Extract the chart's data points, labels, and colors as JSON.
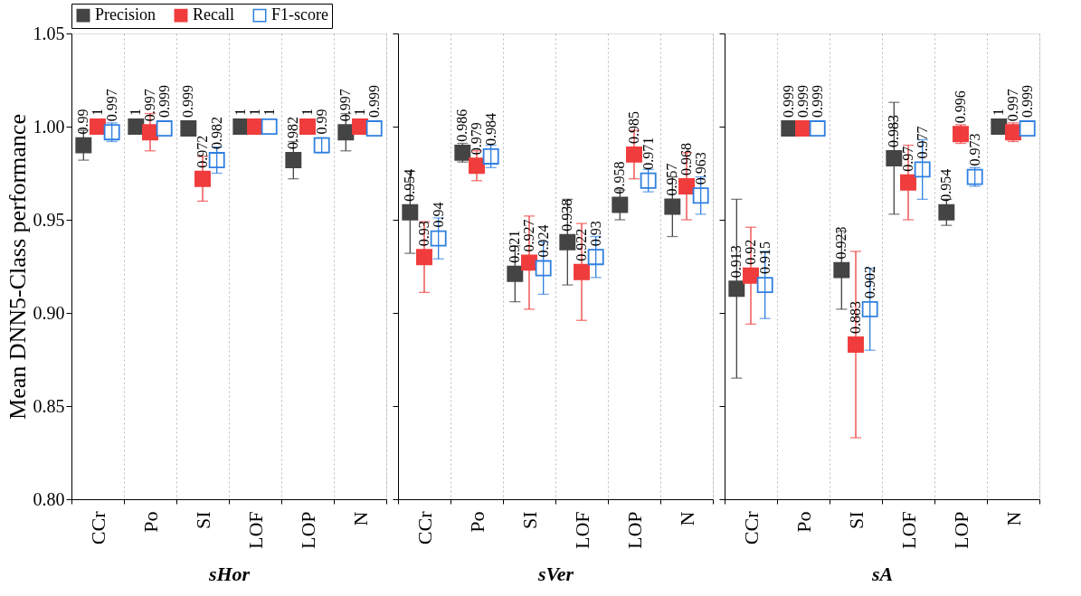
{
  "chart_data": [
    {
      "type": "scatter",
      "xlabel": "sHor",
      "ylabel": "Mean DNN5-Class performance",
      "categories": [
        "CCr",
        "Po",
        "SI",
        "LOF",
        "LOP",
        "N"
      ],
      "ylim": [
        0.8,
        1.05
      ],
      "yticks": [
        {
          "value": 0.8,
          "label": "0.80"
        },
        0.85,
        {
          "value": 0.9,
          "label": "0.90"
        },
        0.95,
        {
          "value": 1.0,
          "label": "1.00"
        },
        1.05
      ],
      "marker": "square",
      "data_labels": true,
      "legend": "top left",
      "grid": "x",
      "series": [
        {
          "name": "Precision",
          "color": "#444444",
          "values": [
            0.99,
            1,
            0.999,
            1,
            0.982,
            0.997
          ],
          "errors": [
            0.008,
            null,
            null,
            null,
            0.01,
            0.01
          ]
        },
        {
          "name": "Recall",
          "color": "#f03c3c",
          "values": [
            1,
            0.997,
            0.972,
            1,
            1,
            1
          ],
          "errors": [
            null,
            0.01,
            0.012,
            null,
            null,
            null
          ]
        },
        {
          "name": "F1-score",
          "color": "#2f7fe0",
          "values": [
            0.997,
            0.999,
            0.982,
            1,
            0.99,
            0.999
          ],
          "errors": [
            0.005,
            null,
            0.007,
            null,
            0.004,
            null
          ]
        }
      ]
    },
    {
      "type": "scatter",
      "xlabel": "sVer",
      "categories": [
        "CCr",
        "Po",
        "SI",
        "LOF",
        "LOP",
        "N"
      ],
      "ylim": [
        0.8,
        1.05
      ],
      "yticks": [
        0.8,
        0.85,
        0.9,
        0.95,
        1.0,
        1.05
      ],
      "marker": "square",
      "data_labels": true,
      "tick_labels": "x",
      "grid": "x",
      "series": [
        {
          "name": "Precision",
          "color": "#444444",
          "values": [
            0.954,
            0.986,
            0.921,
            0.938,
            0.958,
            0.957
          ],
          "errors": [
            0.022,
            0.005,
            0.015,
            0.023,
            0.008,
            0.016
          ]
        },
        {
          "name": "Recall",
          "color": "#f03c3c",
          "values": [
            0.93,
            0.979,
            0.927,
            0.922,
            0.985,
            0.968
          ],
          "errors": [
            0.019,
            0.008,
            0.025,
            0.026,
            0.013,
            0.018
          ]
        },
        {
          "name": "F1-score",
          "color": "#2f7fe0",
          "values": [
            0.94,
            0.984,
            0.924,
            0.93,
            0.971,
            0.963
          ],
          "errors": [
            0.011,
            0.006,
            0.014,
            0.011,
            0.006,
            0.01
          ]
        }
      ]
    },
    {
      "type": "scatter",
      "xlabel": "sA",
      "categories": [
        "CCr",
        "Po",
        "SI",
        "LOF",
        "LOP",
        "N"
      ],
      "ylim": [
        0.8,
        1.05
      ],
      "yticks": [
        0.8,
        0.85,
        0.9,
        0.95,
        1.0,
        1.05
      ],
      "marker": "square",
      "data_labels": true,
      "tick_labels": "x",
      "grid": "x",
      "series": [
        {
          "name": "Precision",
          "color": "#444444",
          "values": [
            0.913,
            0.999,
            0.923,
            0.983,
            0.954,
            1
          ],
          "errors": [
            0.048,
            null,
            0.021,
            0.03,
            0.007,
            null
          ]
        },
        {
          "name": "Recall",
          "color": "#f03c3c",
          "values": [
            0.92,
            0.999,
            0.883,
            0.97,
            0.996,
            0.997
          ],
          "errors": [
            0.026,
            null,
            0.05,
            0.02,
            0.005,
            0.005
          ]
        },
        {
          "name": "F1-score",
          "color": "#2f7fe0",
          "values": [
            0.915,
            0.999,
            0.902,
            0.977,
            0.973,
            0.999
          ],
          "errors": [
            0.018,
            null,
            0.022,
            0.016,
            0.005,
            null
          ]
        }
      ]
    }
  ]
}
